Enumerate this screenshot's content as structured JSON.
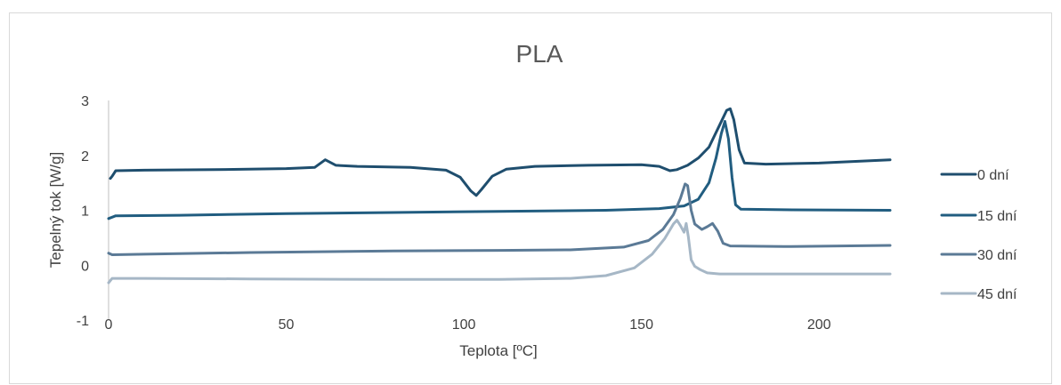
{
  "chart_data": {
    "type": "line",
    "title": "PLA",
    "xlabel": "Teplota [ºC]",
    "ylabel": "Tepelný tok [W/g]",
    "xlim": [
      0,
      220
    ],
    "ylim": [
      -1,
      3
    ],
    "xticks": [
      0,
      50,
      100,
      150,
      200
    ],
    "yticks": [
      -1,
      0,
      1,
      2,
      3
    ],
    "grid": false,
    "legend_position": "right",
    "series": [
      {
        "name": "0 dní",
        "color": "#1f4e6e",
        "points": [
          [
            0.5,
            1.58
          ],
          [
            1,
            1.62
          ],
          [
            2,
            1.72
          ],
          [
            10,
            1.73
          ],
          [
            30,
            1.74
          ],
          [
            50,
            1.76
          ],
          [
            58,
            1.78
          ],
          [
            61,
            1.92
          ],
          [
            64,
            1.82
          ],
          [
            70,
            1.8
          ],
          [
            85,
            1.78
          ],
          [
            95,
            1.73
          ],
          [
            99,
            1.6
          ],
          [
            102,
            1.35
          ],
          [
            103.5,
            1.27
          ],
          [
            105,
            1.38
          ],
          [
            108,
            1.62
          ],
          [
            112,
            1.75
          ],
          [
            120,
            1.8
          ],
          [
            135,
            1.82
          ],
          [
            150,
            1.83
          ],
          [
            155,
            1.8
          ],
          [
            158,
            1.72
          ],
          [
            160,
            1.74
          ],
          [
            163,
            1.82
          ],
          [
            166,
            1.95
          ],
          [
            169,
            2.15
          ],
          [
            172,
            2.55
          ],
          [
            174,
            2.82
          ],
          [
            175,
            2.85
          ],
          [
            176,
            2.65
          ],
          [
            177.5,
            2.1
          ],
          [
            179,
            1.86
          ],
          [
            185,
            1.84
          ],
          [
            200,
            1.86
          ],
          [
            220,
            1.92
          ]
        ]
      },
      {
        "name": "15 dní",
        "color": "#215d80",
        "points": [
          [
            0,
            0.85
          ],
          [
            2,
            0.9
          ],
          [
            20,
            0.91
          ],
          [
            50,
            0.94
          ],
          [
            80,
            0.96
          ],
          [
            110,
            0.98
          ],
          [
            140,
            1.0
          ],
          [
            155,
            1.03
          ],
          [
            162,
            1.08
          ],
          [
            166,
            1.2
          ],
          [
            169,
            1.5
          ],
          [
            171,
            1.95
          ],
          [
            172.5,
            2.4
          ],
          [
            173.5,
            2.62
          ],
          [
            174.5,
            2.3
          ],
          [
            175.5,
            1.6
          ],
          [
            176.5,
            1.1
          ],
          [
            178,
            1.02
          ],
          [
            190,
            1.01
          ],
          [
            220,
            1.0
          ]
        ]
      },
      {
        "name": "30 dní",
        "color": "#5b7a96",
        "points": [
          [
            0,
            0.22
          ],
          [
            1,
            0.19
          ],
          [
            10,
            0.2
          ],
          [
            40,
            0.23
          ],
          [
            80,
            0.26
          ],
          [
            110,
            0.27
          ],
          [
            130,
            0.28
          ],
          [
            145,
            0.33
          ],
          [
            152,
            0.45
          ],
          [
            156,
            0.65
          ],
          [
            159,
            0.92
          ],
          [
            161,
            1.22
          ],
          [
            162.3,
            1.48
          ],
          [
            163,
            1.45
          ],
          [
            164,
            1.0
          ],
          [
            165,
            0.75
          ],
          [
            167,
            0.65
          ],
          [
            168.5,
            0.7
          ],
          [
            170,
            0.76
          ],
          [
            171.5,
            0.62
          ],
          [
            173,
            0.4
          ],
          [
            175,
            0.35
          ],
          [
            190,
            0.34
          ],
          [
            220,
            0.36
          ]
        ]
      },
      {
        "name": "45 dní",
        "color": "#a6b7c6",
        "points": [
          [
            0,
            -0.32
          ],
          [
            1,
            -0.24
          ],
          [
            10,
            -0.24
          ],
          [
            40,
            -0.25
          ],
          [
            80,
            -0.26
          ],
          [
            110,
            -0.26
          ],
          [
            130,
            -0.24
          ],
          [
            140,
            -0.19
          ],
          [
            148,
            -0.05
          ],
          [
            153,
            0.2
          ],
          [
            156.5,
            0.48
          ],
          [
            159,
            0.75
          ],
          [
            160,
            0.82
          ],
          [
            161,
            0.72
          ],
          [
            162,
            0.6
          ],
          [
            162.6,
            0.76
          ],
          [
            163.2,
            0.52
          ],
          [
            164,
            0.1
          ],
          [
            165,
            -0.02
          ],
          [
            166.5,
            -0.08
          ],
          [
            168.5,
            -0.14
          ],
          [
            172,
            -0.16
          ],
          [
            190,
            -0.16
          ],
          [
            220,
            -0.16
          ]
        ]
      }
    ]
  }
}
